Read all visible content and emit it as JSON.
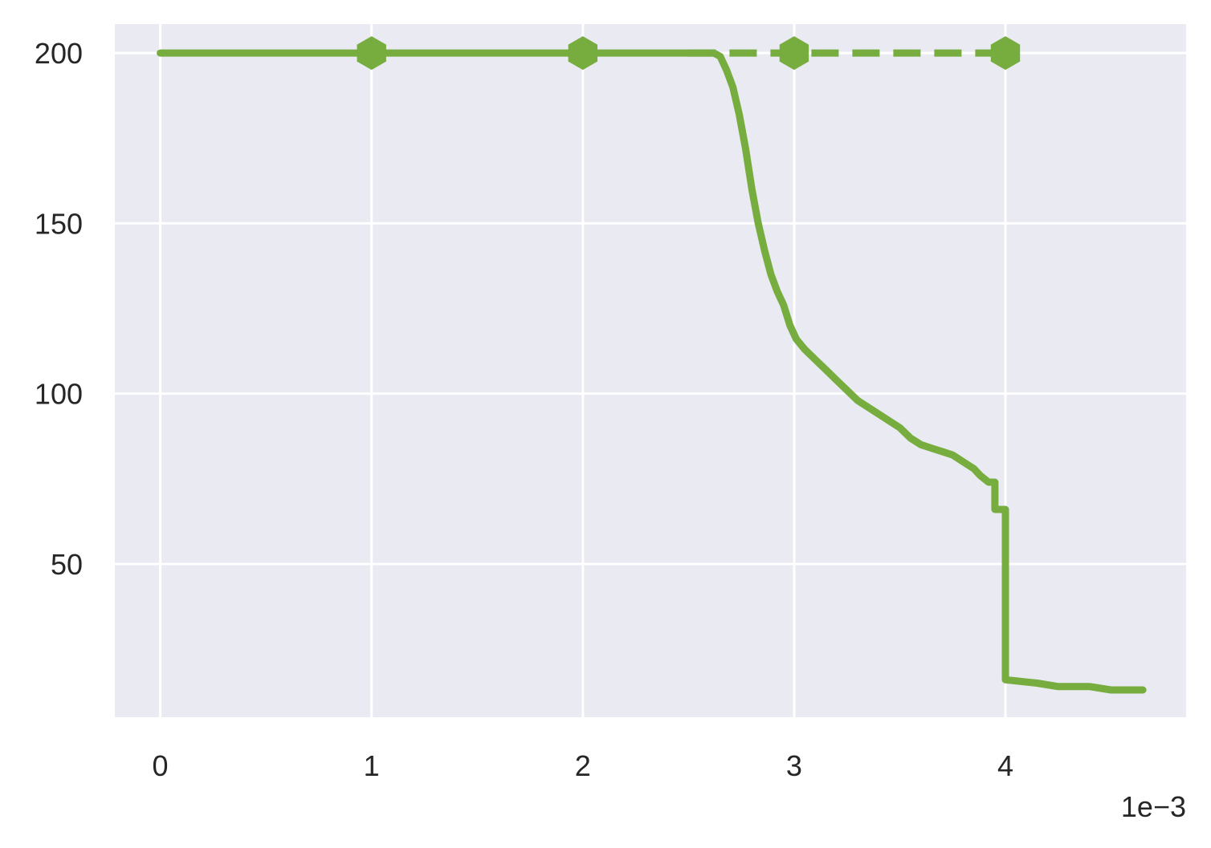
{
  "chart_data": {
    "type": "line",
    "title": "",
    "xlabel": "",
    "ylabel": "",
    "x_offset_label": "1e−3",
    "xlim": [
      -0.000215,
      0.004855
    ],
    "ylim": [
      5.0,
      208.5
    ],
    "grid": true,
    "legend": "none",
    "colors": {
      "background": "#eaeaf2",
      "grid": "#ffffff",
      "series": "#77ad3f",
      "text": "#262626"
    },
    "xticks": [
      {
        "value": 0.0,
        "label": "0"
      },
      {
        "value": 0.001,
        "label": "1"
      },
      {
        "value": 0.002,
        "label": "2"
      },
      {
        "value": 0.003,
        "label": "3"
      },
      {
        "value": 0.004,
        "label": "4"
      }
    ],
    "yticks": [
      {
        "value": 50,
        "label": "50"
      },
      {
        "value": 100,
        "label": "100"
      },
      {
        "value": 150,
        "label": "150"
      },
      {
        "value": 200,
        "label": "200"
      }
    ],
    "series": [
      {
        "style": "solid",
        "x": [
          0.0,
          0.001,
          0.002,
          0.0025,
          0.00262,
          0.00265,
          0.00268,
          0.00271,
          0.00274,
          0.00277,
          0.0028,
          0.00283,
          0.00286,
          0.00289,
          0.00292,
          0.00295,
          0.00298,
          0.00301,
          0.00305,
          0.0031,
          0.00315,
          0.0032,
          0.00325,
          0.0033,
          0.00335,
          0.0034,
          0.00345,
          0.0035,
          0.00355,
          0.0036,
          0.00365,
          0.0037,
          0.00375,
          0.0038,
          0.00385,
          0.00388,
          0.00392,
          0.00395,
          0.00395,
          0.004,
          0.004,
          0.00415,
          0.00425,
          0.0044,
          0.0045,
          0.00465
        ],
        "y": [
          200,
          200,
          200,
          200,
          200,
          199,
          195,
          190,
          182,
          172,
          160,
          150,
          142,
          135,
          130,
          126,
          120,
          116,
          113,
          110,
          107,
          104,
          101,
          98,
          96,
          94,
          92,
          90,
          87,
          85,
          84,
          83,
          82,
          80,
          78,
          76,
          74,
          74,
          66,
          66,
          16,
          15,
          14,
          14,
          13,
          13
        ]
      },
      {
        "style": "dashed",
        "x": [
          0.0025,
          0.003,
          0.0035,
          0.004
        ],
        "y": [
          200,
          200,
          200,
          200
        ]
      }
    ],
    "markers": {
      "shape": "hexagon",
      "x": [
        0.001,
        0.002,
        0.003,
        0.004
      ],
      "y": [
        200,
        200,
        200,
        200
      ]
    }
  }
}
